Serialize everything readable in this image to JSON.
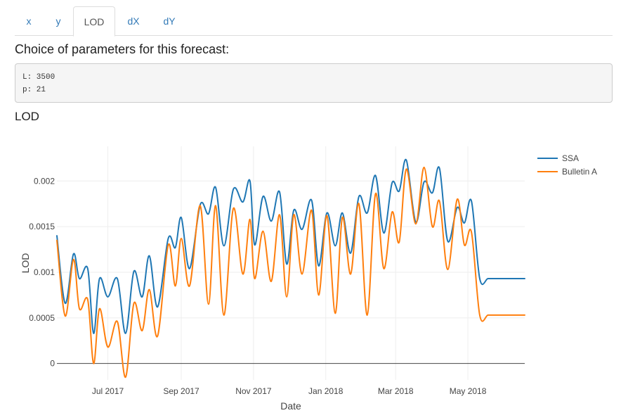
{
  "tabs": [
    {
      "label": "x",
      "active": false
    },
    {
      "label": "y",
      "active": false
    },
    {
      "label": "LOD",
      "active": true
    },
    {
      "label": "dX",
      "active": false
    },
    {
      "label": "dY",
      "active": false
    }
  ],
  "heading": "Choice of parameters for this forecast:",
  "params": [
    "L: 3500",
    "p: 21"
  ],
  "chart_title": "LOD",
  "colors": {
    "ssa": "#1f77b4",
    "bulletin": "#ff7f0e",
    "accent": "#337ab7"
  },
  "chart_data": {
    "type": "line",
    "xlabel": "Date",
    "ylabel": "LOD",
    "xlim": [
      "2017-05-19",
      "2018-06-18"
    ],
    "ylim": [
      -0.00018,
      0.00238
    ],
    "grid": true,
    "legend_position": "top-right",
    "x_ticks": [
      {
        "date": "2017-07-01",
        "label": "Jul 2017"
      },
      {
        "date": "2017-09-01",
        "label": "Sep 2017"
      },
      {
        "date": "2017-11-01",
        "label": "Nov 2017"
      },
      {
        "date": "2018-01-01",
        "label": "Jan 2018"
      },
      {
        "date": "2018-03-01",
        "label": "Mar 2018"
      },
      {
        "date": "2018-05-01",
        "label": "May 2018"
      }
    ],
    "y_ticks": [
      {
        "value": 0,
        "label": "0"
      },
      {
        "value": 0.0005,
        "label": "0.0005"
      },
      {
        "value": 0.001,
        "label": "0.001"
      },
      {
        "value": 0.0015,
        "label": "0.0015"
      },
      {
        "value": 0.002,
        "label": "0.002"
      }
    ],
    "series": [
      {
        "name": "SSA",
        "color": "#1f77b4",
        "x": [
          "2017-05-19",
          "2017-05-26",
          "2017-06-02",
          "2017-06-07",
          "2017-06-14",
          "2017-06-19",
          "2017-06-24",
          "2017-07-01",
          "2017-07-09",
          "2017-07-16",
          "2017-07-23",
          "2017-07-30",
          "2017-08-05",
          "2017-08-12",
          "2017-08-21",
          "2017-08-27",
          "2017-09-01",
          "2017-09-08",
          "2017-09-17",
          "2017-09-24",
          "2017-09-30",
          "2017-10-07",
          "2017-10-15",
          "2017-10-23",
          "2017-10-29",
          "2017-11-02",
          "2017-11-09",
          "2017-11-16",
          "2017-11-23",
          "2017-11-29",
          "2017-12-05",
          "2017-12-12",
          "2017-12-20",
          "2017-12-26",
          "2018-01-02",
          "2018-01-09",
          "2018-01-15",
          "2018-01-22",
          "2018-01-29",
          "2018-02-05",
          "2018-02-12",
          "2018-02-19",
          "2018-02-26",
          "2018-03-04",
          "2018-03-10",
          "2018-03-18",
          "2018-03-25",
          "2018-04-01",
          "2018-04-07",
          "2018-04-14",
          "2018-04-22",
          "2018-04-28",
          "2018-05-04",
          "2018-05-11",
          "2018-05-18",
          "2018-05-25",
          "2018-06-01",
          "2018-06-07",
          "2018-06-13",
          "2018-06-18"
        ],
        "values": [
          0.0014,
          0.00066,
          0.0012,
          0.00093,
          0.00104,
          0.00033,
          0.00093,
          0.00073,
          0.00093,
          0.00033,
          0.00101,
          0.00073,
          0.00118,
          0.00062,
          0.00137,
          0.00127,
          0.0016,
          0.00104,
          0.00174,
          0.00164,
          0.00193,
          0.00129,
          0.00191,
          0.00177,
          0.002,
          0.0013,
          0.00183,
          0.00156,
          0.00188,
          0.00109,
          0.00168,
          0.00147,
          0.00179,
          0.00107,
          0.00165,
          0.00129,
          0.00165,
          0.00121,
          0.00183,
          0.00165,
          0.00206,
          0.00143,
          0.00198,
          0.00189,
          0.00223,
          0.00155,
          0.00199,
          0.00187,
          0.00214,
          0.00134,
          0.00171,
          0.00154,
          0.00178,
          0.00093,
          0.00093,
          0.00093,
          0.00093,
          0.00093,
          0.00093,
          0.00093
        ]
      },
      {
        "name": "Bulletin A",
        "color": "#ff7f0e",
        "x": [
          "2017-05-19",
          "2017-05-26",
          "2017-06-02",
          "2017-06-07",
          "2017-06-14",
          "2017-06-19",
          "2017-06-24",
          "2017-07-01",
          "2017-07-09",
          "2017-07-16",
          "2017-07-23",
          "2017-07-30",
          "2017-08-05",
          "2017-08-12",
          "2017-08-21",
          "2017-08-27",
          "2017-09-01",
          "2017-09-08",
          "2017-09-17",
          "2017-09-24",
          "2017-09-30",
          "2017-10-07",
          "2017-10-15",
          "2017-10-23",
          "2017-10-29",
          "2017-11-02",
          "2017-11-09",
          "2017-11-16",
          "2017-11-23",
          "2017-11-29",
          "2017-12-05",
          "2017-12-12",
          "2017-12-20",
          "2017-12-26",
          "2018-01-02",
          "2018-01-09",
          "2018-01-15",
          "2018-01-22",
          "2018-01-29",
          "2018-02-05",
          "2018-02-12",
          "2018-02-19",
          "2018-02-26",
          "2018-03-04",
          "2018-03-10",
          "2018-03-18",
          "2018-03-25",
          "2018-04-01",
          "2018-04-07",
          "2018-04-14",
          "2018-04-22",
          "2018-04-28",
          "2018-05-04",
          "2018-05-11",
          "2018-05-18",
          "2018-05-25",
          "2018-06-01",
          "2018-06-07",
          "2018-06-13",
          "2018-06-18"
        ],
        "values": [
          0.00135,
          0.00052,
          0.00114,
          0.0006,
          0.0007,
          0.0,
          0.0006,
          0.00018,
          0.00046,
          -0.00015,
          0.00066,
          0.00036,
          0.00081,
          0.0003,
          0.0013,
          0.00085,
          0.00137,
          0.00085,
          0.00173,
          0.00065,
          0.00173,
          0.00053,
          0.0017,
          0.00098,
          0.00158,
          0.00093,
          0.00145,
          0.0009,
          0.00163,
          0.00073,
          0.00163,
          0.00098,
          0.00168,
          0.00075,
          0.00162,
          0.00055,
          0.0016,
          0.00098,
          0.00175,
          0.00053,
          0.00186,
          0.00104,
          0.00166,
          0.00133,
          0.00213,
          0.00153,
          0.00215,
          0.0015,
          0.00178,
          0.00103,
          0.0018,
          0.0013,
          0.00144,
          0.00053,
          0.00053,
          0.00053,
          0.00053,
          0.00053,
          0.00053,
          0.00053
        ]
      }
    ]
  }
}
